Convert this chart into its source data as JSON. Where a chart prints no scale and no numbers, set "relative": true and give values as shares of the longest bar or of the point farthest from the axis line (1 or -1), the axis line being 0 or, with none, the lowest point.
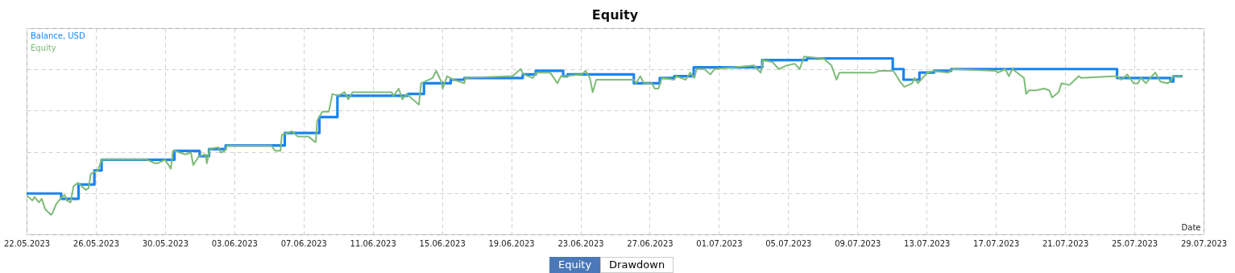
{
  "chart_data": {
    "type": "line",
    "title": "Equity",
    "xlabel": "Date",
    "legend": "top left",
    "grid": true,
    "annotations": [
      "Equity",
      "Drawdown"
    ],
    "xlim": [
      "2023-05-22",
      "2023-07-29"
    ],
    "xticks": [
      {
        "value": "2023-05-22",
        "label": "22.05.2023"
      },
      {
        "value": "2023-05-26",
        "label": "26.05.2023"
      },
      {
        "value": "2023-05-30",
        "label": "30.05.2023"
      },
      {
        "value": "2023-06-03",
        "label": "03.06.2023"
      },
      {
        "value": "2023-06-07",
        "label": "07.06.2023"
      },
      {
        "value": "2023-06-11",
        "label": "11.06.2023"
      },
      {
        "value": "2023-06-15",
        "label": "15.06.2023"
      },
      {
        "value": "2023-06-19",
        "label": "19.06.2023"
      },
      {
        "value": "2023-06-23",
        "label": "23.06.2023"
      },
      {
        "value": "2023-06-27",
        "label": "27.06.2023"
      },
      {
        "value": "2023-07-01",
        "label": "01.07.2023"
      },
      {
        "value": "2023-07-05",
        "label": "05.07.2023"
      },
      {
        "value": "2023-07-09",
        "label": "09.07.2023"
      },
      {
        "value": "2023-07-13",
        "label": "13.07.2023"
      },
      {
        "value": "2023-07-17",
        "label": "17.07.2023"
      },
      {
        "value": "2023-07-21",
        "label": "21.07.2023"
      },
      {
        "value": "2023-07-25",
        "label": "25.07.2023"
      },
      {
        "value": "2023-07-29",
        "label": "29.07.2023"
      }
    ],
    "relative": true,
    "series": [
      {
        "name": "Balance, USD",
        "type": "step",
        "color": "#1a84f0",
        "x": [
          "2023-05-22T00:00",
          "2023-05-24T00:00",
          "2023-05-25T00:00",
          "2023-05-25T22:00",
          "2023-05-26T08:00",
          "2023-05-30T13:00",
          "2023-06-01T00:00",
          "2023-06-01T13:00",
          "2023-06-02T12:00",
          "2023-06-05T22:00",
          "2023-06-07T22:00",
          "2023-06-08T23:00",
          "2023-06-13T01:00",
          "2023-06-13T23:00",
          "2023-06-15T12:00",
          "2023-06-16T07:00",
          "2023-06-19T16:00",
          "2023-06-20T10:00",
          "2023-06-22T00:00",
          "2023-06-22T06:00",
          "2023-06-26T02:00",
          "2023-06-27T14:00",
          "2023-06-28T10:00",
          "2023-06-29T13:00",
          "2023-07-03T12:00",
          "2023-07-06T02:00",
          "2023-07-11T01:00",
          "2023-07-11T16:00",
          "2023-07-12T14:00",
          "2023-07-13T10:00",
          "2023-07-14T10:00",
          "2023-07-24T00:00",
          "2023-07-27T02:00",
          "2023-07-27T06:00",
          "2023-07-27T19:00"
        ],
        "values": [
          0.23,
          0.2,
          0.28,
          0.36,
          0.42,
          0.47,
          0.44,
          0.48,
          0.5,
          0.57,
          0.66,
          0.78,
          0.79,
          0.85,
          0.87,
          0.88,
          0.9,
          0.92,
          0.89,
          0.9,
          0.85,
          0.88,
          0.89,
          0.94,
          0.98,
          0.99,
          0.93,
          0.87,
          0.91,
          0.92,
          0.93,
          0.88,
          0.86,
          0.89,
          0.89
        ]
      },
      {
        "name": "Equity",
        "type": "line",
        "color": "#7dbb78",
        "x": [
          "2023-05-22T00:00",
          "2023-05-22T08:00",
          "2023-05-22T11:00",
          "2023-05-22T17:00",
          "2023-05-22T21:00",
          "2023-05-23T02:00",
          "2023-05-23T10:00",
          "2023-05-23T12:00",
          "2023-05-23T17:00",
          "2023-05-24T01:00",
          "2023-05-24T05:00",
          "2023-05-24T08:00",
          "2023-05-24T13:00",
          "2023-05-24T17:00",
          "2023-05-24T23:00",
          "2023-05-25T10:00",
          "2023-05-25T14:00",
          "2023-05-25T17:00",
          "2023-05-25T22:00",
          "2023-05-26T03:00",
          "2023-05-26T08:00",
          "2023-05-28T23:00",
          "2023-05-29T10:00",
          "2023-05-29T14:00",
          "2023-05-30T00:00",
          "2023-05-30T08:00",
          "2023-05-30T11:00",
          "2023-05-30T13:00",
          "2023-05-31T04:00",
          "2023-05-31T12:00",
          "2023-05-31T15:00",
          "2023-05-31T23:00",
          "2023-06-01T08:00",
          "2023-06-01T10:00",
          "2023-06-01T14:00",
          "2023-06-02T02:00",
          "2023-06-02T05:00",
          "2023-06-02T11:00",
          "2023-06-02T14:00",
          "2023-06-05T03:00",
          "2023-06-05T09:00",
          "2023-06-05T16:00",
          "2023-06-05T18:00",
          "2023-06-06T08:00",
          "2023-06-06T16:00",
          "2023-06-07T07:00",
          "2023-06-07T16:00",
          "2023-06-07T17:00",
          "2023-06-07T19:00",
          "2023-06-08T02:00",
          "2023-06-08T11:00",
          "2023-06-08T16:00",
          "2023-06-09T00:00",
          "2023-06-09T09:00",
          "2023-06-09T14:00",
          "2023-06-09T20:00",
          "2023-06-12T02:00",
          "2023-06-12T05:00",
          "2023-06-12T12:00",
          "2023-06-12T17:00",
          "2023-06-12T23:00",
          "2023-06-13T16:00",
          "2023-06-13T19:00",
          "2023-06-14T11:00",
          "2023-06-14T16:00",
          "2023-06-14T23:00",
          "2023-06-15T01:00",
          "2023-06-15T07:00",
          "2023-06-15T16:00",
          "2023-06-16T07:00",
          "2023-06-16T08:00",
          "2023-06-19T02:00",
          "2023-06-19T13:00",
          "2023-06-19T17:00",
          "2023-06-20T06:00",
          "2023-06-20T11:00",
          "2023-06-21T06:00",
          "2023-06-21T16:00",
          "2023-06-21T21:00",
          "2023-06-22T02:00",
          "2023-06-23T02:00",
          "2023-06-23T07:00",
          "2023-06-23T13:00",
          "2023-06-23T17:00",
          "2023-06-23T22:00",
          "2023-06-26T02:00",
          "2023-06-26T05:00",
          "2023-06-26T11:00",
          "2023-06-26T16:00",
          "2023-06-27T03:00",
          "2023-06-27T07:00",
          "2023-06-27T12:00",
          "2023-06-27T17:00",
          "2023-06-28T10:00",
          "2023-06-28T13:00",
          "2023-06-29T02:00",
          "2023-06-29T08:00",
          "2023-06-29T14:00",
          "2023-06-29T17:00",
          "2023-06-30T04:00",
          "2023-06-30T12:00",
          "2023-06-30T18:00",
          "2023-07-03T01:00",
          "2023-07-03T05:00",
          "2023-07-03T10:00",
          "2023-07-03T13:00",
          "2023-07-04T02:00",
          "2023-07-04T11:00",
          "2023-07-04T22:00",
          "2023-07-05T09:00",
          "2023-07-05T16:00",
          "2023-07-05T22:00",
          "2023-07-07T01:00",
          "2023-07-07T12:00",
          "2023-07-07T19:00",
          "2023-07-07T23:00",
          "2023-07-10T00:00",
          "2023-07-10T07:00",
          "2023-07-11T02:00",
          "2023-07-11T11:00",
          "2023-07-11T17:00",
          "2023-07-12T04:00",
          "2023-07-12T07:00",
          "2023-07-12T12:00",
          "2023-07-13T01:00",
          "2023-07-13T10:00",
          "2023-07-14T06:00",
          "2023-07-14T12:00",
          "2023-07-17T00:00",
          "2023-07-17T03:00",
          "2023-07-17T13:00",
          "2023-07-17T18:00",
          "2023-07-17T23:00",
          "2023-07-18T15:00",
          "2023-07-18T18:00",
          "2023-07-18T22:00",
          "2023-07-19T07:00",
          "2023-07-19T19:00",
          "2023-07-20T02:00",
          "2023-07-20T06:00",
          "2023-07-20T15:00",
          "2023-07-20T19:00",
          "2023-07-21T06:00",
          "2023-07-21T11:00",
          "2023-07-21T19:00",
          "2023-07-21T22:00",
          "2023-07-24T00:00",
          "2023-07-24T06:00",
          "2023-07-24T14:00",
          "2023-07-24T23:00",
          "2023-07-25T05:00",
          "2023-07-25T09:00",
          "2023-07-25T16:00",
          "2023-07-25T22:00",
          "2023-07-26T05:00",
          "2023-07-26T12:00",
          "2023-07-26T22:00",
          "2023-07-27T02:00",
          "2023-07-27T06:00",
          "2023-07-27T19:00"
        ],
        "values": [
          0.22,
          0.19,
          0.21,
          0.18,
          0.2,
          0.14,
          0.11,
          0.12,
          0.17,
          0.21,
          0.22,
          0.19,
          0.18,
          0.27,
          0.29,
          0.25,
          0.26,
          0.34,
          0.35,
          0.36,
          0.42,
          0.42,
          0.4,
          0.4,
          0.42,
          0.37,
          0.47,
          0.47,
          0.45,
          0.46,
          0.39,
          0.44,
          0.45,
          0.4,
          0.48,
          0.49,
          0.46,
          0.47,
          0.5,
          0.5,
          0.47,
          0.47,
          0.56,
          0.58,
          0.55,
          0.55,
          0.52,
          0.52,
          0.64,
          0.69,
          0.69,
          0.79,
          0.78,
          0.8,
          0.76,
          0.8,
          0.8,
          0.78,
          0.82,
          0.76,
          0.79,
          0.73,
          0.85,
          0.88,
          0.92,
          0.86,
          0.82,
          0.89,
          0.87,
          0.85,
          0.88,
          0.89,
          0.93,
          0.9,
          0.88,
          0.91,
          0.91,
          0.85,
          0.89,
          0.89,
          0.9,
          0.92,
          0.88,
          0.8,
          0.87,
          0.87,
          0.85,
          0.89,
          0.85,
          0.85,
          0.82,
          0.82,
          0.88,
          0.87,
          0.89,
          0.87,
          0.91,
          0.88,
          0.93,
          0.93,
          0.9,
          0.93,
          0.95,
          0.93,
          0.91,
          0.98,
          0.97,
          0.93,
          0.95,
          0.96,
          0.93,
          1,
          0.99,
          0.95,
          0.87,
          0.91,
          0.91,
          0.92,
          0.92,
          0.86,
          0.83,
          0.85,
          0.88,
          0.85,
          0.91,
          0.92,
          0.91,
          0.93,
          0.92,
          0.91,
          0.93,
          0.89,
          0.93,
          0.88,
          0.79,
          0.81,
          0.81,
          0.82,
          0.81,
          0.77,
          0.8,
          0.85,
          0.84,
          0.86,
          0.89,
          0.88,
          0.89,
          0.87,
          0.9,
          0.85,
          0.85,
          0.88,
          0.85,
          0.88,
          0.91,
          0.86,
          0.85,
          0.86,
          0.89,
          0.89
        ]
      }
    ]
  }
}
